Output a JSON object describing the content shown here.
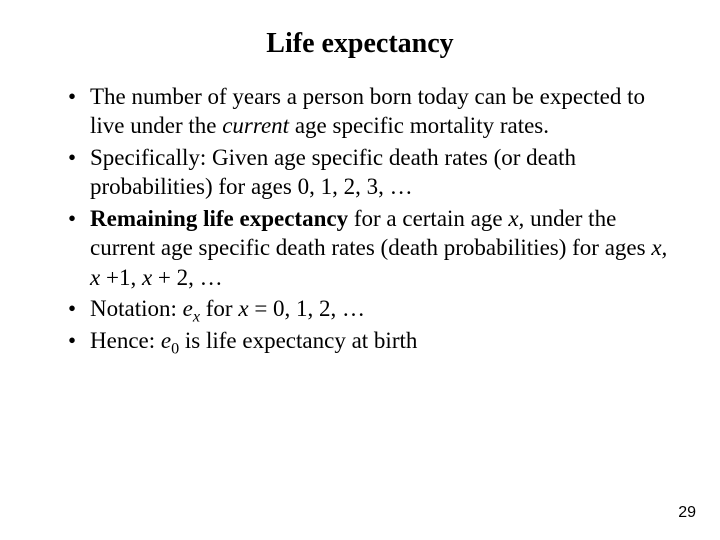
{
  "title": "Life expectancy",
  "bullets": {
    "b1_pre": "The number of years a person born today can be expected to live under the ",
    "b1_current": "current",
    "b1_post": " age specific mortality rates.",
    "b2_text": "Specifically: Given age specific death rates (or death probabilities) for ages 0, 1, 2, 3, ",
    "b2_dots": "…",
    "b3_bold": "Remaining life expectancy",
    "b3_mid1": " for a certain age ",
    "b3_x1": "x,",
    "b3_mid2": " under the current age specific death rates (death probabilities) for ages ",
    "b3_x2": "x, x ",
    "b3_mid3": "+1, ",
    "b3_x3": "x",
    "b3_mid4": " + 2, ",
    "b3_dots": "…",
    "b4_pre": "Notation: ",
    "b4_e": "e",
    "b4_sub": "x",
    "b4_mid": "  for ",
    "b4_x": "x ",
    "b4_post": "= 0, 1, 2, ",
    "b4_dots": "…",
    "b5_pre": "Hence: ",
    "b5_e": "e",
    "b5_sub": "0",
    "b5_post": " is life expectancy at birth"
  },
  "page_number": "29"
}
